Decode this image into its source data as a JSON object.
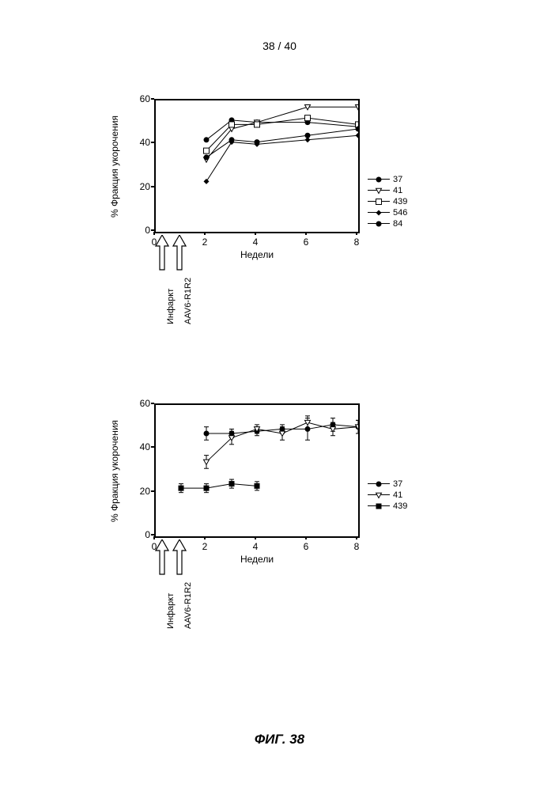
{
  "page_number": "38 / 40",
  "figure_caption": "ФИГ. 38",
  "chart_a": {
    "type": "line",
    "ylabel": "% Фракция укорочения",
    "xlabel": "Недели",
    "xlim": [
      0,
      8
    ],
    "ylim": [
      0,
      60
    ],
    "xtick_step": 2,
    "ytick_step": 20,
    "label_fontsize": 12,
    "background_color": "#ffffff",
    "border_color": "#000000",
    "line_color": "#000000",
    "series": [
      {
        "id": "37",
        "label": "37",
        "marker": "filled-circle",
        "x": [
          2,
          3,
          4,
          6,
          8
        ],
        "y": [
          42,
          51,
          50,
          50,
          48
        ]
      },
      {
        "id": "41",
        "label": "41",
        "marker": "open-triangle-down",
        "x": [
          2,
          3,
          4,
          6,
          8
        ],
        "y": [
          33,
          47,
          50,
          57,
          57
        ]
      },
      {
        "id": "439",
        "label": "439",
        "marker": "open-square",
        "x": [
          2,
          3,
          4,
          6,
          8
        ],
        "y": [
          37,
          49,
          49,
          52,
          49
        ]
      },
      {
        "id": "546",
        "label": "546",
        "marker": "filled-diamond",
        "x": [
          2,
          3,
          4,
          6,
          8
        ],
        "y": [
          23,
          41,
          40,
          42,
          44
        ]
      },
      {
        "id": "84",
        "label": "84",
        "marker": "filled-circle",
        "x": [
          2,
          3,
          4,
          6,
          8
        ],
        "y": [
          34,
          42,
          41,
          44,
          47
        ]
      }
    ],
    "arrows": [
      {
        "label": "Инфаркт",
        "x": 0.3
      },
      {
        "label": "AAV6-R1R2",
        "x": 1.0
      }
    ]
  },
  "chart_b": {
    "type": "line",
    "ylabel": "% Фракция укорочения",
    "xlabel": "Недели",
    "xlim": [
      0,
      8
    ],
    "ylim": [
      0,
      60
    ],
    "xtick_step": 2,
    "ytick_step": 20,
    "label_fontsize": 12,
    "background_color": "#ffffff",
    "border_color": "#000000",
    "line_color": "#000000",
    "series": [
      {
        "id": "37",
        "label": "37",
        "marker": "filled-circle",
        "x": [
          2,
          3,
          4,
          5,
          6,
          7,
          8
        ],
        "y": [
          47,
          47,
          48,
          49,
          49,
          51,
          50
        ],
        "err": [
          3,
          2,
          2,
          2,
          5,
          3,
          3
        ]
      },
      {
        "id": "41",
        "label": "41",
        "marker": "open-triangle-down",
        "x": [
          2,
          3,
          4,
          5,
          6,
          7,
          8
        ],
        "y": [
          34,
          45,
          49,
          47,
          52,
          49,
          50
        ],
        "err": [
          3,
          3,
          2,
          3,
          3,
          3,
          3
        ]
      },
      {
        "id": "439",
        "label": "439",
        "marker": "filled-square",
        "x": [
          1,
          2,
          3,
          4
        ],
        "y": [
          22,
          22,
          24,
          23
        ],
        "err": [
          2,
          2,
          2,
          2
        ]
      }
    ],
    "arrows": [
      {
        "label": "Инфаркт",
        "x": 0.3
      },
      {
        "label": "AAV6-R1R2",
        "x": 1.0
      }
    ]
  }
}
